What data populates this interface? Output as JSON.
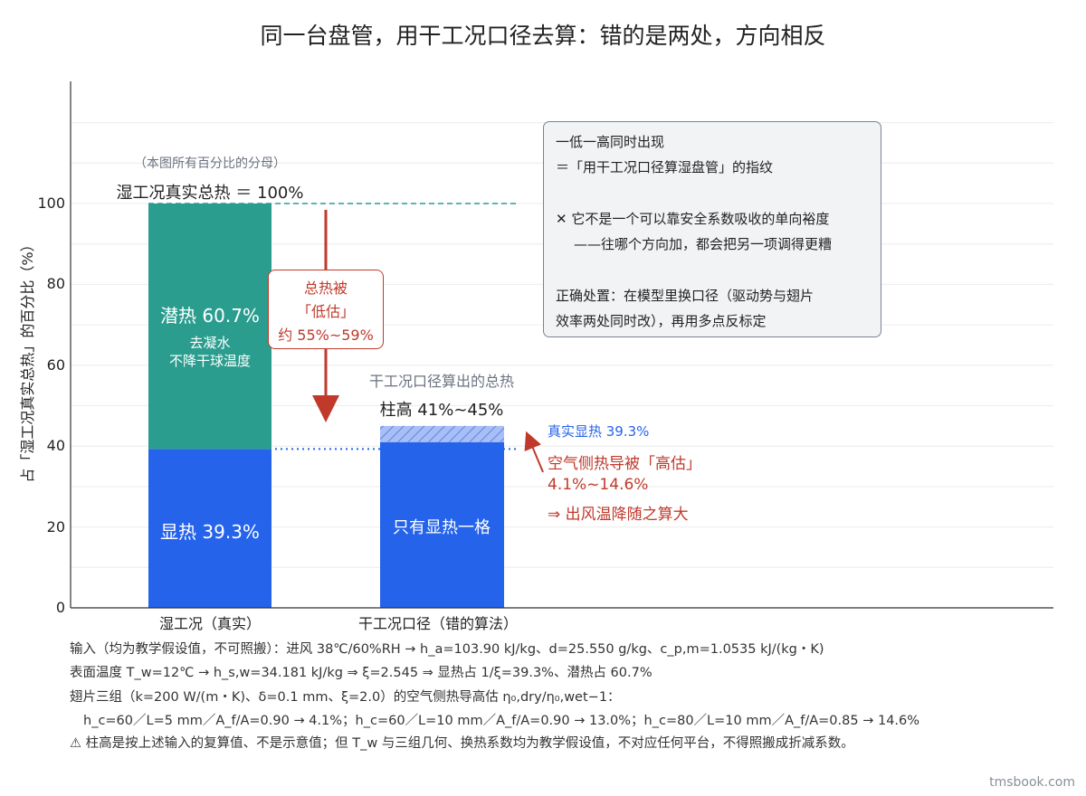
{
  "chart_data": {
    "type": "bar",
    "title": "同一台盘管，用干工况口径去算：错的是两处，方向相反",
    "ylabel": "占「湿工况真实总热」的百分比（%）",
    "ylim": [
      0,
      125
    ],
    "yticks": [
      0,
      20,
      40,
      60,
      80,
      100
    ],
    "grid": true,
    "categories": [
      "湿工况（真实）",
      "干工况口径（错的算法）"
    ],
    "wet": {
      "sensible": 39.3,
      "latent": 60.7,
      "total": 100,
      "sensible_label": "显热 39.3%",
      "latent_label": "潜热 60.7%",
      "latent_note1": "去凝水",
      "latent_note2": "不降干球温度",
      "denominator_note": "（本图所有百分比的分母）",
      "total_label": "湿工况真实总热 ＝ 100%"
    },
    "dry": {
      "low": 41,
      "high": 45,
      "bar_label": "只有显热一格",
      "head_label": "干工况口径算出的总热",
      "range_label": "柱高 41%~45%"
    },
    "true_sensible_label": "真实显热 39.3%",
    "annotations": {
      "underestimate": [
        "总热被",
        "「低估」",
        "约 55%~59%"
      ],
      "overestimate": [
        "空气侧热导被「高估」",
        "4.1%~14.6%",
        "⇒ 出风温降随之算大"
      ]
    }
  },
  "infobox": {
    "line1": "一低一高同时出现",
    "line2": "＝「用干工况口径算湿盘管」的指纹",
    "line3": "✕ 它不是一个可以靠安全系数吸收的单向裕度",
    "line4": "——往哪个方向加，都会把另一项调得更糟",
    "line5": "正确处置：在模型里换口径（驱动势与翅片",
    "line6": "效率两处同时改），再用多点反标定"
  },
  "footnotes": [
    "输入（均为教学假设值，不可照搬）：进风 38℃/60%RH → h_a=103.90 kJ/kg、d=25.550 g/kg、c_p,m=1.0535 kJ/(kg・K)",
    "表面温度 T_w=12℃ → h_s,w=34.181 kJ/kg ⇒ ξ=2.545 ⇒ 显热占 1/ξ=39.3%、潜热占 60.7%",
    "翅片三组（k=200 W/(m・K)、δ=0.1 mm、ξ=2.0）的空气侧热导高估 η₀,dry/η₀,wet−1：",
    "h_c=60／L=5 mm／A_f/A=0.90 → 4.1%；h_c=60／L=10 mm／A_f/A=0.90 → 13.0%；h_c=80／L=10 mm／A_f/A=0.85 → 14.6%",
    "⚠ 柱高是按上述输入的复算值、不是示意值；但 T_w 与三组几何、换热系数均为教学假设值，不对应任何平台，不得照搬成折减系数。"
  ],
  "watermark": "tmsbook.com",
  "colors": {
    "latent": "#2a9d8f",
    "sensible": "#2563eb",
    "hatch": "#9db6f3",
    "red": "#c0392b",
    "blue_text": "#2563eb"
  }
}
